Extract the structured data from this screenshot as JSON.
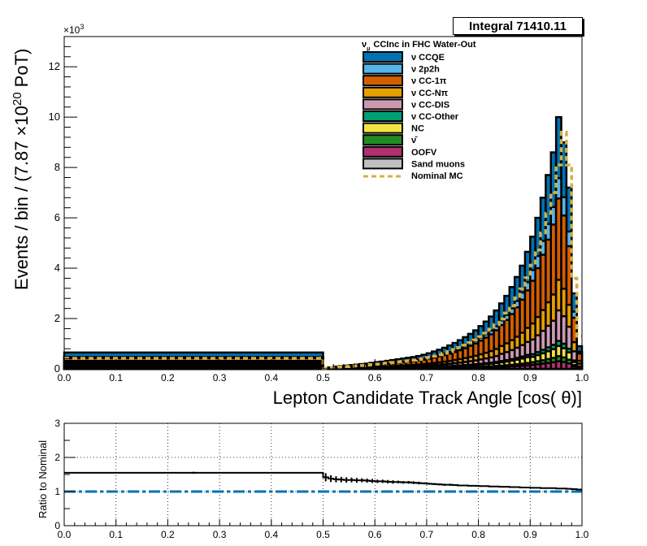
{
  "stat_box": {
    "label": "Integral",
    "value": "71410.11"
  },
  "chart_data": [
    {
      "type": "area",
      "subtype": "stacked-histogram",
      "xlabel": "Lepton Candidate Track Angle [cos(   θ)]",
      "ylabel_parts": {
        "a": "Events / bin / (7.87  ×10",
        "sup": "20",
        "b": " PoT)"
      },
      "y_multiplier": "×10",
      "y_multiplier_exp": "3",
      "xlim": [
        0.0,
        1.0
      ],
      "ylim": [
        0,
        13200
      ],
      "x_ticks": [
        "0.0",
        "0.1",
        "0.2",
        "0.3",
        "0.4",
        "0.5",
        "0.6",
        "0.7",
        "0.8",
        "0.9",
        "1.0"
      ],
      "y_ticks": [
        "0",
        "2",
        "4",
        "6",
        "8",
        "10",
        "12"
      ],
      "y_tick_values": [
        0,
        2000,
        4000,
        6000,
        8000,
        10000,
        12000
      ],
      "legend_title": "CCInc in FHC Water-Out",
      "legend_title_prefix": "ν",
      "legend_title_sub": "μ",
      "legend_position": "top-center",
      "bin_edges": [
        0.0,
        0.5,
        0.51,
        0.52,
        0.53,
        0.54,
        0.55,
        0.56,
        0.57,
        0.58,
        0.59,
        0.6,
        0.61,
        0.62,
        0.63,
        0.64,
        0.65,
        0.66,
        0.67,
        0.68,
        0.69,
        0.7,
        0.71,
        0.72,
        0.73,
        0.74,
        0.75,
        0.76,
        0.77,
        0.78,
        0.79,
        0.8,
        0.81,
        0.82,
        0.83,
        0.84,
        0.85,
        0.86,
        0.87,
        0.88,
        0.89,
        0.9,
        0.91,
        0.92,
        0.93,
        0.94,
        0.95,
        0.96,
        0.97,
        0.98,
        0.99,
        1.0
      ],
      "totals": [
        650,
        30,
        60,
        90,
        110,
        130,
        150,
        170,
        190,
        210,
        240,
        270,
        290,
        320,
        350,
        380,
        410,
        440,
        470,
        510,
        560,
        620,
        690,
        760,
        840,
        930,
        1030,
        1140,
        1260,
        1390,
        1530,
        1700,
        1880,
        2080,
        2320,
        2600,
        2900,
        3250,
        3650,
        4100,
        4650,
        5250,
        6000,
        6800,
        7700,
        8600,
        10000,
        9000,
        7200,
        3000,
        900
      ],
      "series": [
        {
          "name": "ν CCQE",
          "color": "#0072b2",
          "fractions": [
            0.28,
            0.3,
            0.32,
            0.33,
            0.33,
            0.33,
            0.33,
            0.33,
            0.33,
            0.32,
            0.32,
            0.31,
            0.31,
            0.3,
            0.3,
            0.29,
            0.29,
            0.28,
            0.28,
            0.28,
            0.28,
            0.28,
            0.28,
            0.28,
            0.28,
            0.28,
            0.28,
            0.28,
            0.28,
            0.27,
            0.27,
            0.27,
            0.27,
            0.27,
            0.27,
            0.26,
            0.26,
            0.26,
            0.26,
            0.26,
            0.26,
            0.25,
            0.25,
            0.25,
            0.25,
            0.25,
            0.24,
            0.24,
            0.24,
            0.24,
            0.24
          ]
        },
        {
          "name": "ν 2p2h",
          "color": "#56b4e9",
          "fractions": [
            0.06,
            0.06,
            0.06,
            0.06,
            0.06,
            0.06,
            0.06,
            0.06,
            0.06,
            0.06,
            0.07,
            0.07,
            0.07,
            0.07,
            0.07,
            0.07,
            0.07,
            0.07,
            0.07,
            0.07,
            0.07,
            0.07,
            0.07,
            0.07,
            0.07,
            0.07,
            0.07,
            0.07,
            0.07,
            0.07,
            0.07,
            0.07,
            0.07,
            0.07,
            0.07,
            0.07,
            0.07,
            0.07,
            0.07,
            0.07,
            0.07,
            0.08,
            0.08,
            0.08,
            0.08,
            0.08,
            0.08,
            0.08,
            0.08,
            0.08,
            0.08
          ]
        },
        {
          "name": "ν CC-1π",
          "color": "#d55e00",
          "fractions": [
            0.3,
            0.29,
            0.28,
            0.28,
            0.28,
            0.28,
            0.28,
            0.28,
            0.28,
            0.29,
            0.29,
            0.29,
            0.29,
            0.3,
            0.3,
            0.3,
            0.3,
            0.31,
            0.31,
            0.31,
            0.31,
            0.31,
            0.31,
            0.31,
            0.31,
            0.31,
            0.31,
            0.31,
            0.31,
            0.32,
            0.32,
            0.32,
            0.32,
            0.32,
            0.32,
            0.32,
            0.32,
            0.32,
            0.32,
            0.32,
            0.32,
            0.32,
            0.32,
            0.32,
            0.32,
            0.32,
            0.32,
            0.32,
            0.32,
            0.32,
            0.32
          ]
        },
        {
          "name": "ν CC-Nπ",
          "color": "#e69f00",
          "fractions": [
            0.14,
            0.14,
            0.14,
            0.13,
            0.13,
            0.13,
            0.13,
            0.13,
            0.13,
            0.13,
            0.12,
            0.12,
            0.12,
            0.12,
            0.12,
            0.12,
            0.12,
            0.12,
            0.12,
            0.12,
            0.12,
            0.12,
            0.12,
            0.12,
            0.12,
            0.12,
            0.12,
            0.12,
            0.12,
            0.12,
            0.12,
            0.12,
            0.12,
            0.12,
            0.12,
            0.12,
            0.12,
            0.12,
            0.12,
            0.12,
            0.12,
            0.12,
            0.12,
            0.12,
            0.12,
            0.12,
            0.12,
            0.12,
            0.12,
            0.12,
            0.12
          ]
        },
        {
          "name": "ν CC-DIS",
          "color": "#cc99b3",
          "fractions": [
            0.08,
            0.08,
            0.08,
            0.08,
            0.08,
            0.08,
            0.08,
            0.08,
            0.08,
            0.08,
            0.08,
            0.09,
            0.09,
            0.09,
            0.09,
            0.1,
            0.1,
            0.1,
            0.1,
            0.1,
            0.1,
            0.1,
            0.1,
            0.1,
            0.1,
            0.1,
            0.1,
            0.1,
            0.1,
            0.1,
            0.1,
            0.1,
            0.1,
            0.1,
            0.1,
            0.11,
            0.11,
            0.11,
            0.11,
            0.11,
            0.11,
            0.11,
            0.11,
            0.11,
            0.11,
            0.11,
            0.12,
            0.12,
            0.12,
            0.12,
            0.12
          ]
        },
        {
          "name": "ν CC-Other",
          "color": "#009e73",
          "fractions": [
            0.02,
            0.02,
            0.02,
            0.02,
            0.02,
            0.02,
            0.02,
            0.02,
            0.02,
            0.02,
            0.02,
            0.02,
            0.02,
            0.02,
            0.02,
            0.02,
            0.02,
            0.02,
            0.02,
            0.02,
            0.02,
            0.02,
            0.02,
            0.02,
            0.02,
            0.02,
            0.02,
            0.02,
            0.02,
            0.02,
            0.02,
            0.02,
            0.02,
            0.02,
            0.02,
            0.02,
            0.02,
            0.02,
            0.02,
            0.02,
            0.02,
            0.02,
            0.02,
            0.02,
            0.02,
            0.02,
            0.02,
            0.02,
            0.02,
            0.02,
            0.02
          ]
        },
        {
          "name": "NC",
          "color": "#f0e442",
          "fractions": [
            0.05,
            0.05,
            0.05,
            0.05,
            0.05,
            0.05,
            0.05,
            0.05,
            0.05,
            0.05,
            0.05,
            0.05,
            0.05,
            0.05,
            0.05,
            0.05,
            0.05,
            0.05,
            0.05,
            0.05,
            0.05,
            0.05,
            0.05,
            0.05,
            0.05,
            0.05,
            0.05,
            0.05,
            0.05,
            0.05,
            0.05,
            0.05,
            0.05,
            0.05,
            0.05,
            0.05,
            0.05,
            0.05,
            0.05,
            0.05,
            0.05,
            0.04,
            0.04,
            0.04,
            0.04,
            0.04,
            0.04,
            0.04,
            0.04,
            0.04,
            0.04
          ]
        },
        {
          "name": "ν̄",
          "color": "#228b22",
          "fractions": [
            0.02,
            0.02,
            0.02,
            0.02,
            0.02,
            0.02,
            0.02,
            0.02,
            0.02,
            0.02,
            0.02,
            0.02,
            0.02,
            0.02,
            0.02,
            0.02,
            0.02,
            0.02,
            0.02,
            0.02,
            0.02,
            0.02,
            0.02,
            0.02,
            0.02,
            0.02,
            0.02,
            0.02,
            0.02,
            0.02,
            0.02,
            0.02,
            0.02,
            0.02,
            0.02,
            0.02,
            0.02,
            0.02,
            0.02,
            0.02,
            0.02,
            0.02,
            0.02,
            0.02,
            0.02,
            0.02,
            0.02,
            0.02,
            0.02,
            0.02,
            0.02
          ]
        },
        {
          "name": "OOFV",
          "color": "#b03070",
          "fractions": [
            0.05,
            0.04,
            0.03,
            0.03,
            0.03,
            0.03,
            0.03,
            0.03,
            0.03,
            0.03,
            0.03,
            0.03,
            0.03,
            0.03,
            0.03,
            0.03,
            0.03,
            0.03,
            0.03,
            0.03,
            0.03,
            0.03,
            0.03,
            0.03,
            0.03,
            0.03,
            0.03,
            0.03,
            0.03,
            0.03,
            0.03,
            0.03,
            0.03,
            0.03,
            0.03,
            0.03,
            0.03,
            0.03,
            0.03,
            0.03,
            0.03,
            0.03,
            0.03,
            0.03,
            0.03,
            0.03,
            0.03,
            0.03,
            0.03,
            0.03,
            0.03
          ]
        },
        {
          "name": "Sand muons",
          "color": "#c0c0c0",
          "fractions": [
            0.0,
            0.0,
            0.0,
            0.0,
            0.0,
            0.0,
            0.0,
            0.0,
            0.0,
            0.0,
            0.0,
            0.0,
            0.0,
            0.0,
            0.0,
            0.0,
            0.0,
            0.0,
            0.0,
            0.0,
            0.0,
            0.0,
            0.0,
            0.0,
            0.0,
            0.0,
            0.0,
            0.0,
            0.0,
            0.0,
            0.0,
            0.0,
            0.0,
            0.0,
            0.0,
            0.0,
            0.0,
            0.0,
            0.0,
            0.0,
            0.0,
            0.0,
            0.0,
            0.0,
            0.0,
            0.0,
            0.0,
            0.0,
            0.0,
            0.0,
            0.0
          ]
        }
      ],
      "nominal": {
        "name": "Nominal MC",
        "color": "#d4b044",
        "values": [
          420,
          20,
          40,
          60,
          75,
          90,
          105,
          120,
          135,
          150,
          170,
          190,
          210,
          230,
          255,
          275,
          300,
          320,
          345,
          375,
          410,
          455,
          505,
          560,
          620,
          690,
          765,
          850,
          940,
          1040,
          1150,
          1280,
          1420,
          1580,
          1760,
          1980,
          2220,
          2500,
          2820,
          3180,
          3620,
          4120,
          4720,
          5400,
          6180,
          7000,
          8100,
          9400,
          8100,
          3600,
          1300
        ]
      }
    },
    {
      "type": "line",
      "subtype": "ratio-panel",
      "ylabel": "Ratio to Nominal",
      "xlim": [
        0.0,
        1.0
      ],
      "ylim": [
        0,
        3
      ],
      "x_ticks": [
        "0.0",
        "0.1",
        "0.2",
        "0.3",
        "0.4",
        "0.5",
        "0.6",
        "0.7",
        "0.8",
        "0.9",
        "1.0"
      ],
      "y_ticks": [
        "0",
        "1",
        "2",
        "3"
      ],
      "y_tick_values": [
        0,
        1,
        2,
        3
      ],
      "grid": true,
      "reference": {
        "value": 1.0,
        "color": "#0072b2"
      },
      "bin_edges": [
        0.0,
        0.5,
        0.51,
        0.52,
        0.53,
        0.54,
        0.55,
        0.56,
        0.57,
        0.58,
        0.59,
        0.6,
        0.61,
        0.62,
        0.63,
        0.64,
        0.65,
        0.66,
        0.67,
        0.68,
        0.69,
        0.7,
        0.71,
        0.72,
        0.73,
        0.74,
        0.75,
        0.76,
        0.77,
        0.78,
        0.79,
        0.8,
        0.81,
        0.82,
        0.83,
        0.84,
        0.85,
        0.86,
        0.87,
        0.88,
        0.89,
        0.9,
        0.91,
        0.92,
        0.93,
        0.94,
        0.95,
        0.96,
        0.97,
        0.98,
        0.99,
        1.0
      ],
      "ratio": [
        1.55,
        1.42,
        1.38,
        1.36,
        1.35,
        1.34,
        1.34,
        1.33,
        1.33,
        1.32,
        1.31,
        1.3,
        1.3,
        1.29,
        1.28,
        1.28,
        1.27,
        1.27,
        1.26,
        1.25,
        1.24,
        1.23,
        1.22,
        1.21,
        1.2,
        1.2,
        1.19,
        1.18,
        1.18,
        1.17,
        1.17,
        1.16,
        1.16,
        1.15,
        1.15,
        1.14,
        1.14,
        1.13,
        1.13,
        1.12,
        1.12,
        1.11,
        1.11,
        1.1,
        1.1,
        1.1,
        1.09,
        1.09,
        1.08,
        1.07,
        1.06
      ],
      "errors": [
        0.03,
        0.12,
        0.1,
        0.09,
        0.08,
        0.08,
        0.07,
        0.07,
        0.06,
        0.06,
        0.06,
        0.05,
        0.05,
        0.05,
        0.05,
        0.04,
        0.04,
        0.04,
        0.04,
        0.04,
        0.03,
        0.03,
        0.03,
        0.03,
        0.03,
        0.03,
        0.02,
        0.02,
        0.02,
        0.02,
        0.02,
        0.02,
        0.02,
        0.02,
        0.01,
        0.01,
        0.01,
        0.01,
        0.01,
        0.01,
        0.01,
        0.01,
        0.01,
        0.01,
        0.01,
        0.01,
        0.01,
        0.01,
        0.01,
        0.01,
        0.01
      ]
    }
  ]
}
